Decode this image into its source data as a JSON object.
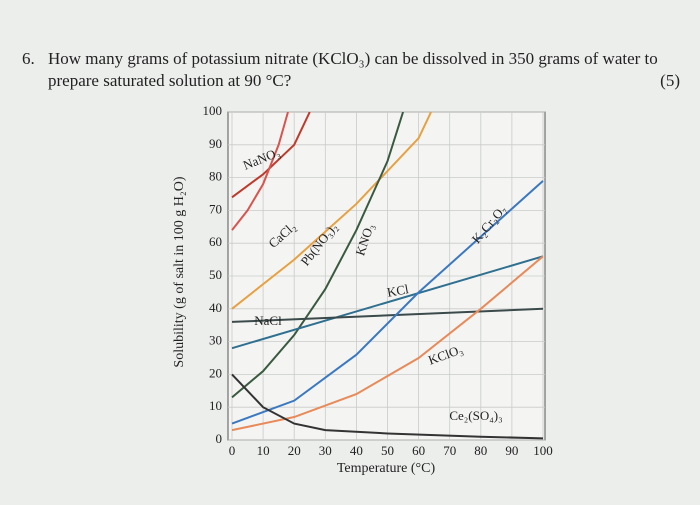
{
  "question": {
    "number": "6.",
    "line1": "How many grams of potassium nitrate (KClO₃) can be dissolved in 350 grams of water to",
    "line2": "prepare saturated solution at 90 °C?",
    "marks": "(5)"
  },
  "chart_data": {
    "type": "line",
    "xlabel": "Temperature (°C)",
    "ylabel": "Solubility (g of salt in 100 g H₂O)",
    "xlim": [
      0,
      100
    ],
    "xticks": [
      0,
      10,
      20,
      30,
      40,
      50,
      60,
      70,
      80,
      90,
      100
    ],
    "ylim": [
      0,
      100
    ],
    "yticks": [
      0,
      10,
      20,
      30,
      40,
      50,
      60,
      70,
      80,
      90,
      100
    ],
    "grid": true,
    "series": [
      {
        "name": "NaNO₃",
        "color": "#c0392b",
        "x": [
          0,
          10,
          20,
          25
        ],
        "values": [
          74,
          81,
          90,
          100
        ]
      },
      {
        "name": "CaCl₂",
        "color": "#d9534f",
        "x": [
          0,
          5,
          10,
          15,
          18
        ],
        "values": [
          64,
          70,
          78,
          90,
          100
        ]
      },
      {
        "name": "Pb(NO₃)₂",
        "color": "#e8a040",
        "x": [
          0,
          20,
          40,
          60,
          64
        ],
        "values": [
          40,
          55,
          72,
          92,
          100
        ]
      },
      {
        "name": "KNO₃",
        "color": "#3a5a40",
        "x": [
          0,
          10,
          20,
          30,
          40,
          50,
          55
        ],
        "values": [
          13,
          21,
          32,
          46,
          64,
          85,
          100
        ]
      },
      {
        "name": "KCl",
        "color": "#2f6f8f",
        "x": [
          0,
          100
        ],
        "values": [
          28,
          56
        ]
      },
      {
        "name": "NaCl",
        "color": "#3b4a4a",
        "x": [
          0,
          100
        ],
        "values": [
          36,
          40
        ]
      },
      {
        "name": "K₂Cr₂O₇",
        "color": "#3b78c2",
        "x": [
          0,
          20,
          40,
          60,
          80,
          100
        ],
        "values": [
          5,
          12,
          26,
          45,
          62,
          79
        ]
      },
      {
        "name": "KClO₃",
        "color": "#e88a5a",
        "x": [
          0,
          20,
          40,
          60,
          80,
          100
        ],
        "values": [
          3,
          7,
          14,
          25,
          40,
          56
        ]
      },
      {
        "name": "Ce₂(SO₄)₃",
        "color": "#333333",
        "x": [
          0,
          10,
          20,
          30,
          50,
          80,
          100
        ],
        "values": [
          20,
          10,
          5,
          3,
          2,
          1,
          0.5
        ]
      }
    ]
  }
}
